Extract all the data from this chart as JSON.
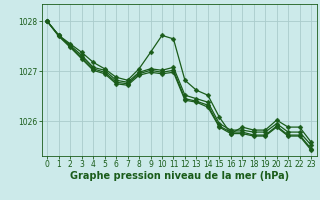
{
  "xlabel": "Graphe pression niveau de la mer (hPa)",
  "background_color": "#cceaea",
  "grid_color": "#aacccc",
  "line_color": "#1a5c1a",
  "marker": "D",
  "markersize": 2.5,
  "linewidth": 0.9,
  "ylim": [
    1025.3,
    1028.35
  ],
  "xlim": [
    -0.5,
    23.5
  ],
  "yticks": [
    1026,
    1027,
    1028
  ],
  "xticks": [
    0,
    1,
    2,
    3,
    4,
    5,
    6,
    7,
    8,
    9,
    10,
    11,
    12,
    13,
    14,
    15,
    16,
    17,
    18,
    19,
    20,
    21,
    22,
    23
  ],
  "series": [
    [
      1028.0,
      1027.72,
      1027.55,
      1027.38,
      1027.18,
      1027.05,
      1026.88,
      1026.82,
      1027.05,
      1027.38,
      1027.72,
      1027.65,
      1026.82,
      1026.62,
      1026.52,
      1026.08,
      1025.75,
      1025.88,
      1025.82,
      1025.82,
      1026.02,
      1025.88,
      1025.88,
      1025.58
    ],
    [
      1028.0,
      1027.72,
      1027.52,
      1027.32,
      1027.08,
      1027.02,
      1026.82,
      1026.78,
      1026.98,
      1027.05,
      1027.02,
      1027.08,
      1026.52,
      1026.45,
      1026.38,
      1025.95,
      1025.82,
      1025.82,
      1025.78,
      1025.78,
      1025.95,
      1025.78,
      1025.78,
      1025.52
    ],
    [
      1028.0,
      1027.72,
      1027.5,
      1027.28,
      1027.05,
      1026.98,
      1026.78,
      1026.75,
      1026.95,
      1027.02,
      1026.98,
      1027.02,
      1026.45,
      1026.4,
      1026.32,
      1025.9,
      1025.78,
      1025.78,
      1025.72,
      1025.72,
      1025.9,
      1025.72,
      1025.72,
      1025.45
    ],
    [
      1028.0,
      1027.7,
      1027.48,
      1027.25,
      1027.02,
      1026.95,
      1026.75,
      1026.72,
      1026.92,
      1026.98,
      1026.95,
      1026.98,
      1026.42,
      1026.38,
      1026.28,
      1025.88,
      1025.75,
      1025.75,
      1025.7,
      1025.7,
      1025.88,
      1025.7,
      1025.7,
      1025.42
    ]
  ],
  "ticker_fontsize": 5.5,
  "xlabel_fontsize": 7.0
}
